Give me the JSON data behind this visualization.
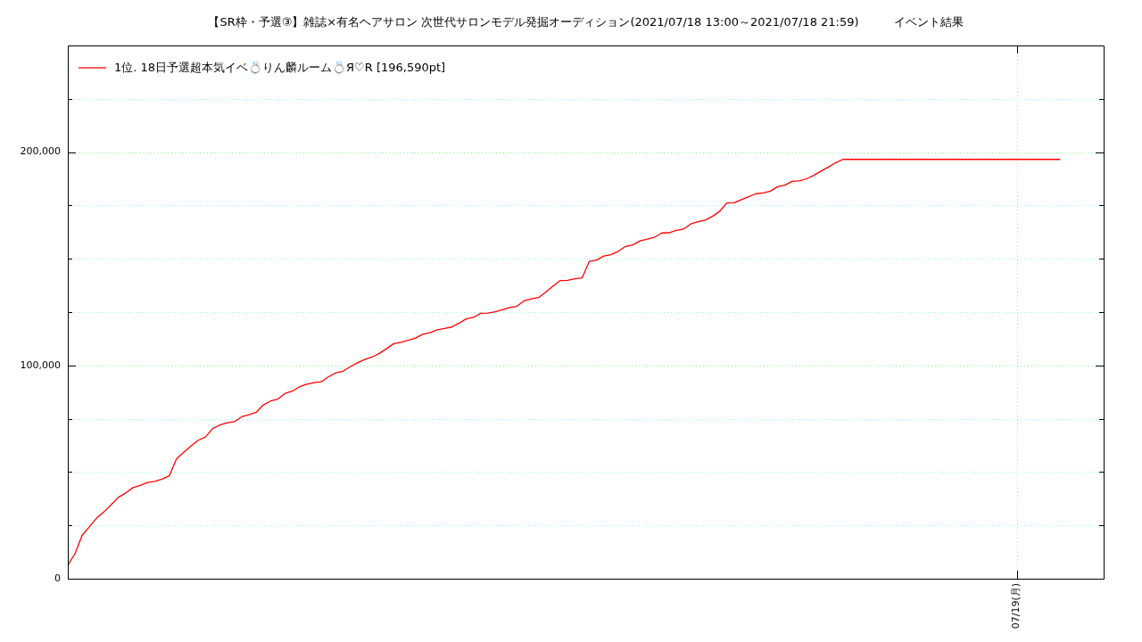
{
  "chart_data": {
    "type": "line",
    "title": "【SR枠・予選③】雑誌×有名ヘアサロン 次世代サロンモデル発掘オーディション(2021/07/18 13:00～2021/07/18 21:59)　　　イベント結果",
    "categories": [
      null,
      null,
      null,
      null,
      null,
      null,
      null,
      null,
      null,
      null,
      null,
      null,
      null,
      null,
      null,
      null,
      null,
      null,
      null,
      null,
      null,
      null,
      null,
      null,
      null,
      null,
      null,
      null,
      null,
      null,
      null,
      null,
      null,
      null,
      null,
      null,
      null,
      null,
      null,
      null,
      null,
      null,
      null,
      null,
      null,
      null,
      null,
      null,
      null,
      null,
      null,
      null,
      null,
      null,
      null,
      null,
      null,
      null,
      null,
      null,
      null,
      null,
      null,
      null,
      null,
      null,
      null,
      null,
      null,
      null,
      null,
      null,
      null,
      null,
      null,
      null,
      null,
      null,
      null,
      null,
      null,
      null,
      null,
      null,
      null,
      null,
      null,
      null,
      null,
      null,
      null,
      null,
      null,
      null,
      null,
      null,
      null,
      null,
      null,
      null,
      null,
      null,
      null,
      null,
      null,
      null,
      null,
      null,
      null,
      null,
      null,
      null,
      null,
      null,
      null,
      null,
      null,
      null,
      null,
      null,
      null,
      null,
      null,
      null,
      null,
      null,
      null,
      null,
      null,
      null,
      null,
      "07/19(月)",
      null,
      null,
      null,
      null,
      null,
      null,
      null,
      null,
      null,
      null,
      null,
      null
    ],
    "series": [
      {
        "name": "1位. 18日予選超本気イベ💍りん麟ルーム💍Я♡R [196,590pt]",
        "color": "#ff0000",
        "values": [
          6300,
          11800,
          20500,
          24400,
          28500,
          31400,
          34700,
          38200,
          40200,
          42700,
          43700,
          45100,
          45600,
          46700,
          48200,
          56100,
          59300,
          62200,
          64900,
          66400,
          70400,
          72100,
          73100,
          73600,
          75900,
          76900,
          78000,
          81500,
          83300,
          84200,
          86900,
          87900,
          90000,
          91200,
          91900,
          92300,
          94700,
          96500,
          97300,
          99400,
          101200,
          102800,
          103900,
          105600,
          107800,
          110200,
          110800,
          111800,
          112800,
          114600,
          115300,
          116700,
          117300,
          118000,
          119800,
          121800,
          122500,
          124400,
          124500,
          125200,
          126100,
          127100,
          127700,
          130300,
          131200,
          131800,
          134400,
          137200,
          139800,
          139900,
          140600,
          141000,
          148800,
          149400,
          151300,
          151900,
          153500,
          155800,
          156500,
          158400,
          159200,
          160100,
          162100,
          162200,
          163300,
          163900,
          166300,
          167400,
          168100,
          169900,
          172300,
          176200,
          176300,
          177700,
          179100,
          180500,
          180900,
          181700,
          183800,
          184500,
          186300,
          186500,
          187500,
          189100,
          191100,
          193000,
          195000,
          196590,
          196590,
          196590,
          196590,
          196590,
          196590,
          196590,
          196590,
          196590,
          196590,
          196590,
          196590,
          196590,
          196590,
          196590,
          196590,
          196590,
          196590,
          196590,
          196590,
          196590,
          196590,
          196590,
          196590,
          196590,
          196590,
          196590,
          196590,
          196590,
          196590,
          196590,
          null,
          null,
          null,
          null,
          null,
          null
        ]
      }
    ],
    "ylim": [
      0,
      250000
    ],
    "yticks": [
      {
        "value": 0,
        "label": "0"
      },
      {
        "value": 25000,
        "label": null
      },
      {
        "value": 50000,
        "label": null
      },
      {
        "value": 75000,
        "label": null
      },
      {
        "value": 100000,
        "label": "100,000"
      },
      {
        "value": 125000,
        "label": null
      },
      {
        "value": 150000,
        "label": null
      },
      {
        "value": 175000,
        "label": null
      },
      {
        "value": 200000,
        "label": "200,000"
      },
      {
        "value": 225000,
        "label": null
      }
    ],
    "grid": true,
    "legend": "top left"
  }
}
